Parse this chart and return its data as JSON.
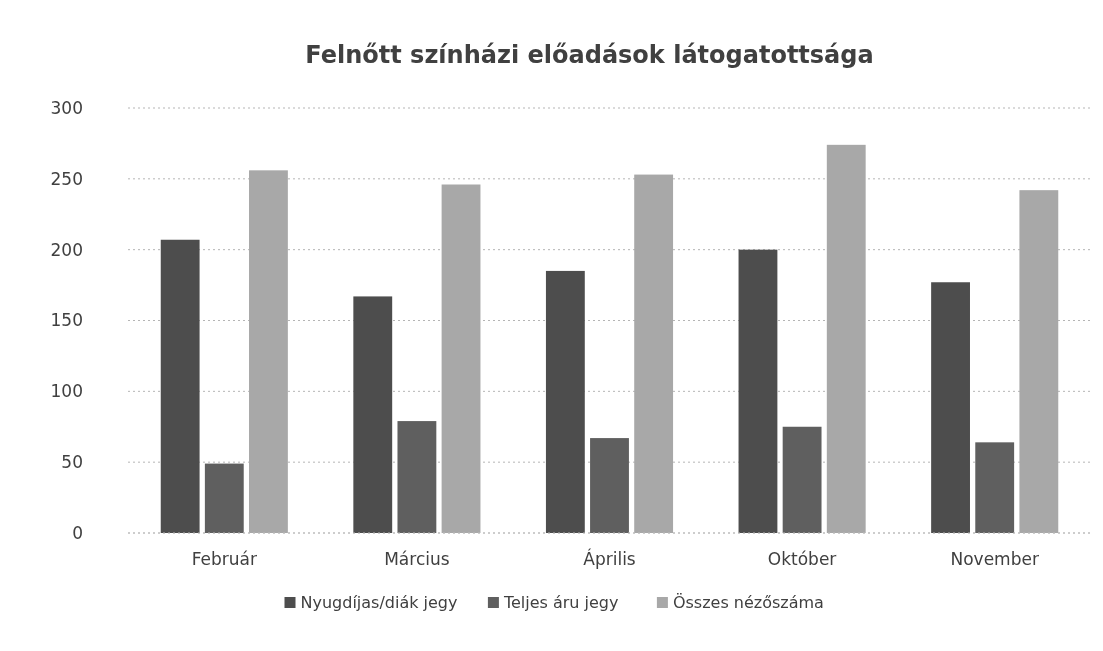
{
  "chart_data": {
    "type": "bar",
    "title": "Felnőtt színházi előadások látogatottsága",
    "categories": [
      "Február",
      "Március",
      "Április",
      "Október",
      "November"
    ],
    "series": [
      {
        "name": "Nyugdíjas/diák jegy",
        "color": "#4d4d4d",
        "values": [
          207,
          167,
          185,
          200,
          177
        ]
      },
      {
        "name": "Teljes áru jegy",
        "color": "#5f5f5f",
        "values": [
          49,
          79,
          67,
          75,
          64
        ]
      },
      {
        "name": "Összes nézőszáma",
        "color": "#a8a8a8",
        "values": [
          256,
          246,
          253,
          274,
          242
        ]
      }
    ],
    "ylim": [
      0,
      300
    ],
    "yticks": [
      0,
      50,
      100,
      150,
      200,
      250,
      300
    ],
    "grid": "y",
    "legend": "bottom"
  }
}
